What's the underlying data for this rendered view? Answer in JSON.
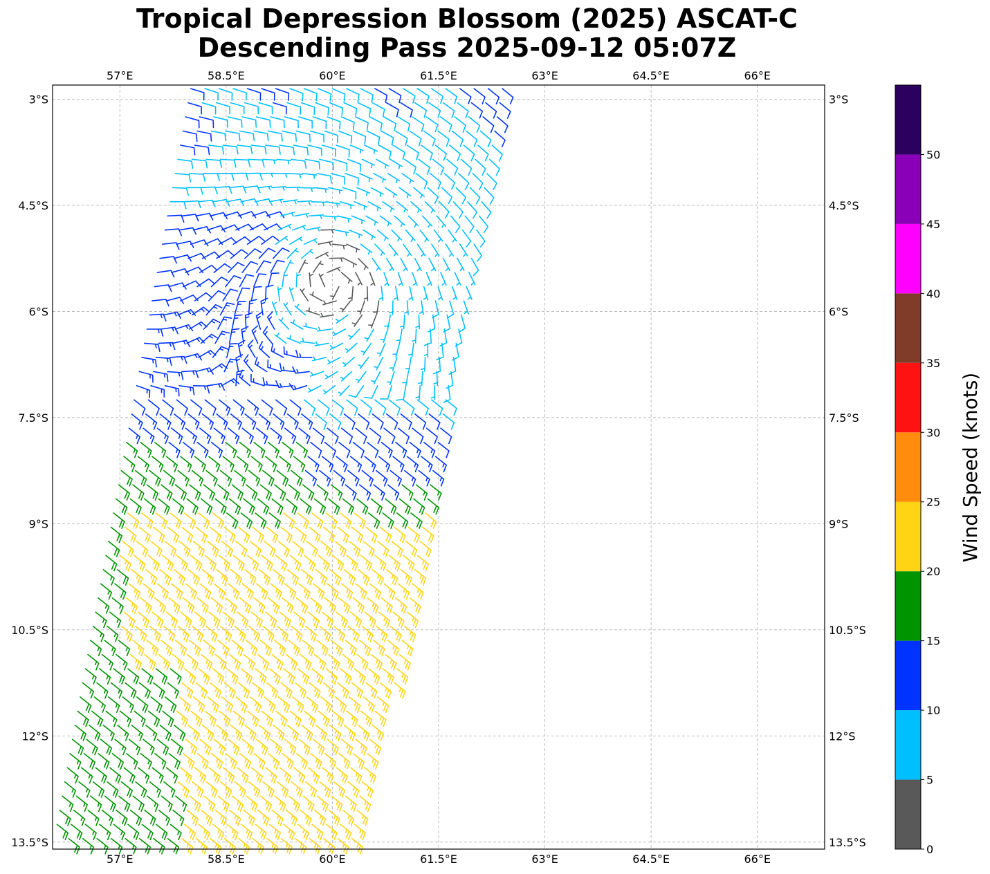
{
  "title_lines": [
    "Tropical Depression Blossom (2025) ASCAT-C",
    "Descending Pass 2025-09-12 05:07Z"
  ],
  "chart_data": {
    "type": "wind-barb-map",
    "title": "Tropical Depression Blossom (2025) ASCAT-C Descending Pass 2025-09-12 05:07Z",
    "xlim": [
      56.05,
      66.95
    ],
    "ylim": [
      -13.6,
      -2.8
    ],
    "x_ticks": [
      57,
      58.5,
      60,
      61.5,
      63,
      64.5,
      66
    ],
    "x_tick_labels": [
      "57°E",
      "58.5°E",
      "60°E",
      "61.5°E",
      "63°E",
      "64.5°E",
      "66°E"
    ],
    "y_ticks": [
      -3,
      -4.5,
      -6,
      -7.5,
      -9,
      -10.5,
      -12,
      -13.5
    ],
    "y_tick_labels": [
      "3°S",
      "4.5°S",
      "6°S",
      "7.5°S",
      "9°S",
      "10.5°S",
      "12°S",
      "13.5°S"
    ],
    "grid": true,
    "swath": {
      "top_lon_range": [
        58.0,
        62.6
      ],
      "bottom_lon_range": [
        56.05,
        60.4
      ],
      "lat_range": [
        -2.85,
        -13.6
      ]
    },
    "circulation_center": {
      "lon": 60.0,
      "lat": -5.6
    },
    "colorbar": {
      "label": "Wind Speed (knots)",
      "bounds": [
        0,
        5,
        10,
        15,
        20,
        25,
        30,
        35,
        40,
        45,
        50,
        55
      ],
      "tick_labels": [
        "0",
        "5",
        "10",
        "15",
        "20",
        "25",
        "30",
        "35",
        "40",
        "45",
        "50"
      ],
      "colors": [
        "#595959",
        "#00bfff",
        "#0033ff",
        "#009400",
        "#ffd414",
        "#ff8c0d",
        "#ff1212",
        "#803b29",
        "#ff00ff",
        "#8a00b8",
        "#2b005e"
      ]
    }
  }
}
